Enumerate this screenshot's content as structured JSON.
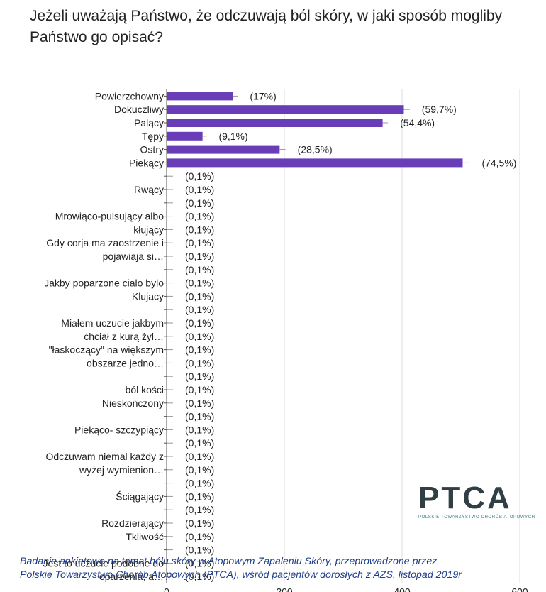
{
  "title": "Jeżeli uważają Państwo, że odczuwają ból skóry, w jaki sposób mogliby Państwo go opisać?",
  "logo": {
    "text": "PTCA",
    "subtitle": "POLSKIE TOWARZYSTWO CHORÓB ATOPOWYCH"
  },
  "footnote": {
    "line1": "Badanie ankietowe na temat bólu skóry w Atopowym Zapaleniu Skóry, przeprowadzone przez",
    "line2": "Polskie Towarzystwo Chorób Atopowych (PTCA), wśród pacjentów dorosłych z AZS, listopad 2019r"
  },
  "colors": {
    "bar": "#6a3db8",
    "grid": "#dedede",
    "axis": "#555555",
    "text": "#222222"
  },
  "chart_data": {
    "type": "bar",
    "orientation": "horizontal",
    "xlim": [
      0,
      600
    ],
    "x_ticks": [
      0,
      200,
      400,
      600
    ],
    "grid": true,
    "error_bars": true,
    "rows": [
      {
        "label": "Powierzchowny",
        "value": 113,
        "err": 8,
        "pct": "(17%)"
      },
      {
        "label": "Dokuczliwy",
        "value": 403,
        "err": 10,
        "pct": "(59,7%)"
      },
      {
        "label": "Palący",
        "value": 367,
        "err": 9,
        "pct": "(54,4%)"
      },
      {
        "label": "Tępy",
        "value": 61,
        "err": 7,
        "pct": "(9,1%)"
      },
      {
        "label": "Ostry",
        "value": 192,
        "err": 10,
        "pct": "(28,5%)"
      },
      {
        "label": "Piekący",
        "value": 503,
        "err": 12,
        "pct": "(74,5%)"
      },
      {
        "label": "",
        "value": 1,
        "err": 0,
        "pct": "(0,1%)"
      },
      {
        "label": "Rwący",
        "value": 1,
        "err": 0,
        "pct": "(0,1%)"
      },
      {
        "label": "",
        "value": 1,
        "err": 0,
        "pct": "(0,1%)"
      },
      {
        "label": "Mrowiąco-pulsujący albo",
        "value": 1,
        "err": 0,
        "pct": "(0,1%)"
      },
      {
        "label": "kłujący",
        "value": 1,
        "err": 0,
        "pct": "(0,1%)"
      },
      {
        "label": "Gdy corja ma zaostrzenie i",
        "value": 1,
        "err": 0,
        "pct": "(0,1%)"
      },
      {
        "label": "pojawiaja si…",
        "value": 1,
        "err": 0,
        "pct": "(0,1%)"
      },
      {
        "label": "",
        "value": 1,
        "err": 0,
        "pct": "(0,1%)"
      },
      {
        "label": "Jakby poparzone cialo bylo",
        "value": 1,
        "err": 0,
        "pct": "(0,1%)"
      },
      {
        "label": "Klujacy",
        "value": 1,
        "err": 0,
        "pct": "(0,1%)"
      },
      {
        "label": "",
        "value": 1,
        "err": 0,
        "pct": "(0,1%)"
      },
      {
        "label": "Miałem uczucie jakbym",
        "value": 1,
        "err": 0,
        "pct": "(0,1%)"
      },
      {
        "label": "chciał z kurą żyl…",
        "value": 1,
        "err": 0,
        "pct": "(0,1%)"
      },
      {
        "label": "\"łaskoczący\" na większym",
        "value": 1,
        "err": 0,
        "pct": "(0,1%)"
      },
      {
        "label": "obszarze jedno…",
        "value": 1,
        "err": 0,
        "pct": "(0,1%)"
      },
      {
        "label": "",
        "value": 1,
        "err": 0,
        "pct": "(0,1%)"
      },
      {
        "label": "ból kości",
        "value": 1,
        "err": 0,
        "pct": "(0,1%)"
      },
      {
        "label": "Nieskończony",
        "value": 1,
        "err": 0,
        "pct": "(0,1%)"
      },
      {
        "label": "",
        "value": 1,
        "err": 0,
        "pct": "(0,1%)"
      },
      {
        "label": "Piekąco- szczypiący",
        "value": 1,
        "err": 0,
        "pct": "(0,1%)"
      },
      {
        "label": "",
        "value": 1,
        "err": 0,
        "pct": "(0,1%)"
      },
      {
        "label": "Odczuwam niemal każdy z",
        "value": 1,
        "err": 0,
        "pct": "(0,1%)"
      },
      {
        "label": "wyżej wymienion…",
        "value": 1,
        "err": 0,
        "pct": "(0,1%)"
      },
      {
        "label": "",
        "value": 1,
        "err": 0,
        "pct": "(0,1%)"
      },
      {
        "label": "Ściągający",
        "value": 1,
        "err": 0,
        "pct": "(0,1%)"
      },
      {
        "label": "",
        "value": 1,
        "err": 0,
        "pct": "(0,1%)"
      },
      {
        "label": "Rozdzierający",
        "value": 1,
        "err": 0,
        "pct": "(0,1%)"
      },
      {
        "label": "Tkliwość",
        "value": 1,
        "err": 0,
        "pct": "(0,1%)"
      },
      {
        "label": "",
        "value": 1,
        "err": 0,
        "pct": "(0,1%)"
      },
      {
        "label": "Jest to uczucie podobne do",
        "value": 1,
        "err": 0,
        "pct": "(0,1%)"
      },
      {
        "label": "oparzenia, a…",
        "value": 1,
        "err": 0,
        "pct": "(0,1%)"
      }
    ]
  }
}
